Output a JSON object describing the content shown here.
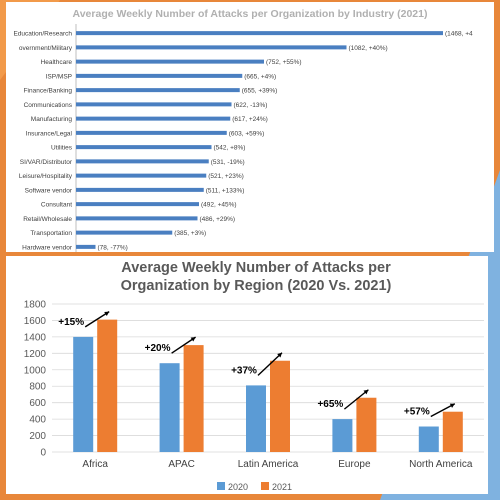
{
  "chart_data": [
    {
      "type": "bar",
      "orientation": "horizontal",
      "title": "Average Weekly Number of Attacks per Organization by Industry (2021)",
      "categories": [
        "Education/Research",
        "Government/Military",
        "Healthcare",
        "ISP/MSP",
        "Finance/Banking",
        "Communications",
        "Manufacturing",
        "Insurance/Legal",
        "Utilities",
        "SI/VAR/Distributor",
        "Leisure/Hospitality",
        "Software vendor",
        "Consultant",
        "Retail/Wholesale",
        "Transportation",
        "Hardware vendor"
      ],
      "display_categories": [
        "Education/Research",
        "overnment/Military",
        "Healthcare",
        "ISP/MSP",
        "Finance/Banking",
        "Communications",
        "Manufacturing",
        "Insurance/Legal",
        "Utilities",
        "SI/VAR/Distributor",
        "Leisure/Hospitality",
        "Software vendor",
        "Consultant",
        "Retail/Wholesale",
        "Transportation",
        "Hardware vendor"
      ],
      "values": [
        1468,
        1082,
        752,
        665,
        655,
        622,
        617,
        603,
        542,
        531,
        521,
        511,
        492,
        486,
        385,
        78
      ],
      "data_labels": [
        "(1468, +4",
        "(1082, +40%)",
        "(752, +55%)",
        "(665, +4%)",
        "(655, +39%)",
        "(622, -13%)",
        "(617, +24%)",
        "(603, +59%)",
        "(542, +8%)",
        "(531, -19%)",
        "(521, +23%)",
        "(511, +133%)",
        "(492, +45%)",
        "(486, +29%)",
        "(385, +3%)",
        "(78, -77%)"
      ],
      "xlim": [
        0,
        1600
      ],
      "bar_color": "#4a7fc1"
    },
    {
      "type": "bar",
      "title_lines": [
        "Average Weekly Number of Attacks per",
        "Organization by Region (2020 Vs. 2021)"
      ],
      "categories": [
        "Africa",
        "APAC",
        "Latin America",
        "Europe",
        "North America"
      ],
      "series": [
        {
          "name": "2020",
          "values": [
            1400,
            1080,
            810,
            400,
            310
          ],
          "color": "#5b9bd5"
        },
        {
          "name": "2021",
          "values": [
            1610,
            1300,
            1110,
            660,
            490
          ],
          "color": "#ed7d31"
        }
      ],
      "growth_labels": [
        "+15%",
        "+20%",
        "+37%",
        "+65%",
        "+57%"
      ],
      "ylim": [
        0,
        1800
      ],
      "yticks": [
        "0",
        "200",
        "400",
        "600",
        "800",
        "1000",
        "1200",
        "1400",
        "1600",
        "1800"
      ],
      "legend_position": "bottom",
      "grid": true
    }
  ]
}
